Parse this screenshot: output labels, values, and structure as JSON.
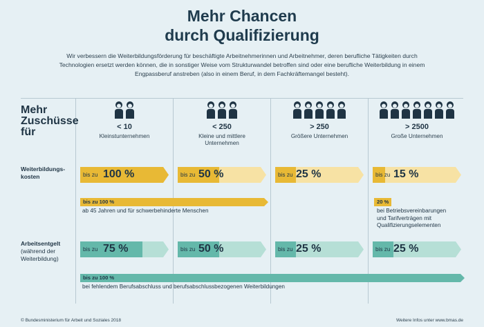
{
  "title_line1": "Mehr Chancen",
  "title_line2": "durch Qualifizierung",
  "intro": "Wir verbessern die Weiterbildungsförderung für beschäftigte Arbeitnehmerinnen und Arbeitnehmer, deren berufliche Tätigkeiten durch Technologien ersetzt werden können, die in sonstiger Weise vom Strukturwandel betroffen sind oder eine berufliche Weiterbildung in einem Engpassberuf anstreben (also in einem Beruf, in dem Fachkräftemangel besteht).",
  "header_line1": "Mehr",
  "header_line2": "Zuschüsse",
  "header_line3": "für",
  "columns": [
    {
      "count": "< 10",
      "name1": "Kleinstunternehmen",
      "name2": "",
      "people": 2
    },
    {
      "count": "< 250",
      "name1": "Kleine und mittlere",
      "name2": "Unternehmen",
      "people": 3
    },
    {
      "count": "> 250",
      "name1": "Größere Unternehmen",
      "name2": "",
      "people": 5
    },
    {
      "count": "> 2500",
      "name1": "Große Unternehmen",
      "name2": "",
      "people": 7
    }
  ],
  "row1_label1": "Weiterbildungs-",
  "row1_label2": "kosten",
  "row2_label1": "Arbeitsentgelt",
  "row2_label2": "(während der",
  "row2_label3": "Weiterbildung)",
  "prefix": "bis zu",
  "costs": [
    {
      "value": "100 %",
      "fill": 1.0
    },
    {
      "value": "50 %",
      "fill": 0.5
    },
    {
      "value": "25 %",
      "fill": 0.25
    },
    {
      "value": "15 %",
      "fill": 0.15
    }
  ],
  "wages": [
    {
      "value": "75 %",
      "fill": 0.75
    },
    {
      "value": "50 %",
      "fill": 0.5
    },
    {
      "value": "25 %",
      "fill": 0.25
    },
    {
      "value": "25 %",
      "fill": 0.25
    }
  ],
  "cost_extra_label": "bis zu 100 %",
  "cost_extra_note": "ab 45 Jahren und für schwerbehinderte Menschen",
  "cost_large_label": "20 %",
  "cost_large_note1": "bei Betriebsvereinbarungen",
  "cost_large_note2": "und Tarifverträgen mit",
  "cost_large_note3": "Qualifizierungselementen",
  "wage_extra_label": "bis zu 100 %",
  "wage_extra_note": "bei fehlendem Berufsabschluss und berufsabschlussbezogenen Weiterbildungen",
  "footer_left": "© Bundesministerium für Arbeit und Soziales 2018",
  "footer_right": "Weitere Infos unter www.bmas.de",
  "colors": {
    "yellow": "#e8b935",
    "yellow_light": "#f7e2a4",
    "teal": "#64b8aa",
    "teal_light": "#b6dfd6",
    "person": "#1f3444"
  }
}
